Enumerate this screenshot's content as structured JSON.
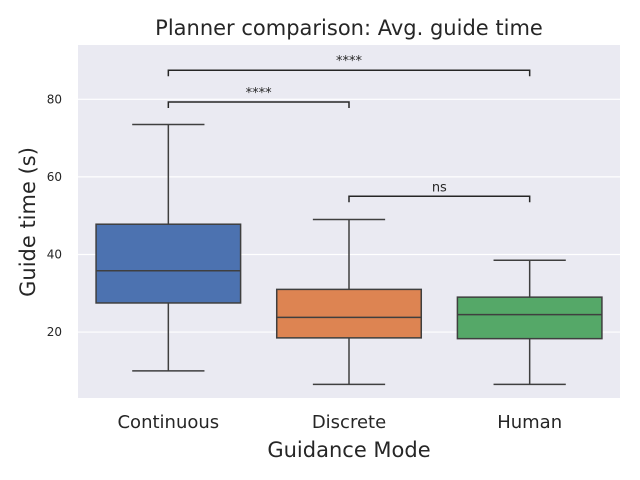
{
  "chart_data": {
    "type": "box",
    "title": "Planner comparison: Avg. guide time",
    "xlabel": "Guidance Mode",
    "ylabel": "Guide time (s)",
    "ylim": [
      3,
      94
    ],
    "yticks": [
      20,
      40,
      60,
      80
    ],
    "grid": true,
    "categories": [
      "Continuous",
      "Discrete",
      "Human"
    ],
    "boxes": [
      {
        "name": "Continuous",
        "whisker_low": 10.0,
        "q1": 27.5,
        "median": 35.8,
        "q3": 47.8,
        "whisker_high": 73.5,
        "color": "#4c72b0"
      },
      {
        "name": "Discrete",
        "whisker_low": 6.5,
        "q1": 18.5,
        "median": 23.8,
        "q3": 31.0,
        "whisker_high": 49.0,
        "color": "#dd8452"
      },
      {
        "name": "Human",
        "whisker_low": 6.5,
        "q1": 18.3,
        "median": 24.5,
        "q3": 29.0,
        "whisker_high": 38.5,
        "color": "#55a868"
      }
    ],
    "annotations": [
      {
        "from": "Continuous",
        "to": "Human",
        "y": 87.5,
        "text": "****"
      },
      {
        "from": "Continuous",
        "to": "Discrete",
        "y": 79.3,
        "text": "****"
      },
      {
        "from": "Discrete",
        "to": "Human",
        "y": 55.0,
        "text": "ns"
      }
    ],
    "colors": {
      "background": "#eaeaf2",
      "grid": "#ffffff",
      "line": "#3f3f3f"
    }
  }
}
